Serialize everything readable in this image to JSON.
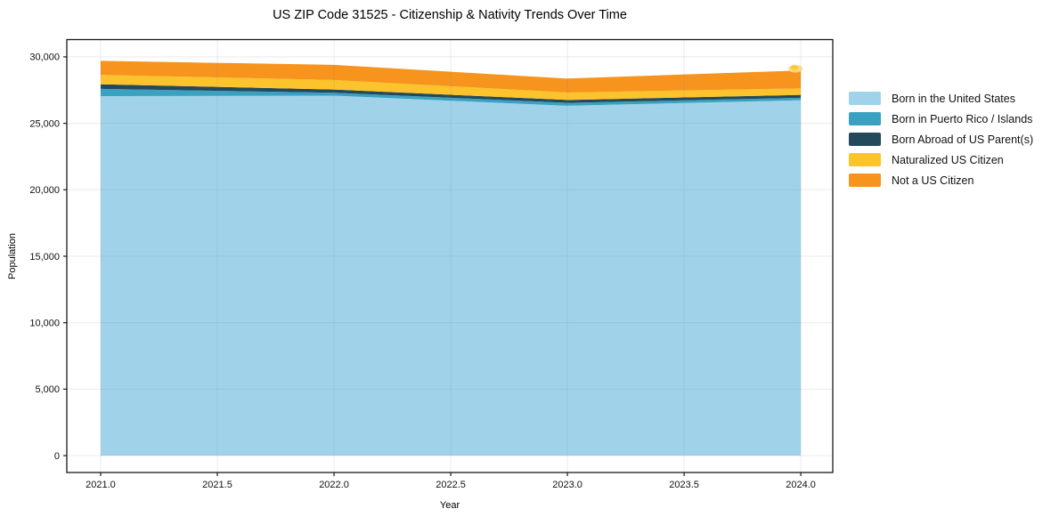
{
  "chart_data": {
    "type": "area",
    "stacked": true,
    "title": "US ZIP Code 31525 - Citizenship & Nativity Trends Over Time",
    "xlabel": "Year",
    "ylabel": "Population",
    "x": [
      2021,
      2022,
      2023,
      2024
    ],
    "series": [
      {
        "name": "Born in the United States",
        "color": "#a0d3e9",
        "values": [
          27050,
          27080,
          26320,
          26740
        ]
      },
      {
        "name": "Born in Puerto Rico / Islands",
        "color": "#3aa2c0",
        "values": [
          540,
          220,
          220,
          180
        ]
      },
      {
        "name": "Born Abroad of US Parent(s)",
        "color": "#24495c",
        "values": [
          350,
          240,
          220,
          220
        ]
      },
      {
        "name": "Naturalized US Citizen",
        "color": "#fcc32d",
        "values": [
          700,
          720,
          560,
          490
        ]
      },
      {
        "name": "Not a US Citizen",
        "color": "#f6941e",
        "values": [
          1060,
          1140,
          1050,
          1350
        ]
      }
    ],
    "totals": [
      29700,
      29400,
      28370,
      28980
    ],
    "xticks": [
      2021.0,
      2021.5,
      2022.0,
      2022.5,
      2023.0,
      2023.5,
      2024.0
    ],
    "xtick_labels": [
      "2021.0",
      "2021.5",
      "2022.0",
      "2022.5",
      "2023.0",
      "2023.5",
      "2024.0"
    ],
    "yticks": [
      0,
      5000,
      10000,
      15000,
      20000,
      25000,
      30000
    ],
    "ytick_labels": [
      "0",
      "5,000",
      "10,000",
      "15,000",
      "20,000",
      "25,000",
      "30,000"
    ],
    "xlim": [
      2020.855,
      2024.137
    ],
    "ylim": [
      -1270,
      31300
    ],
    "grid": true,
    "legend_position": "right-outside"
  }
}
